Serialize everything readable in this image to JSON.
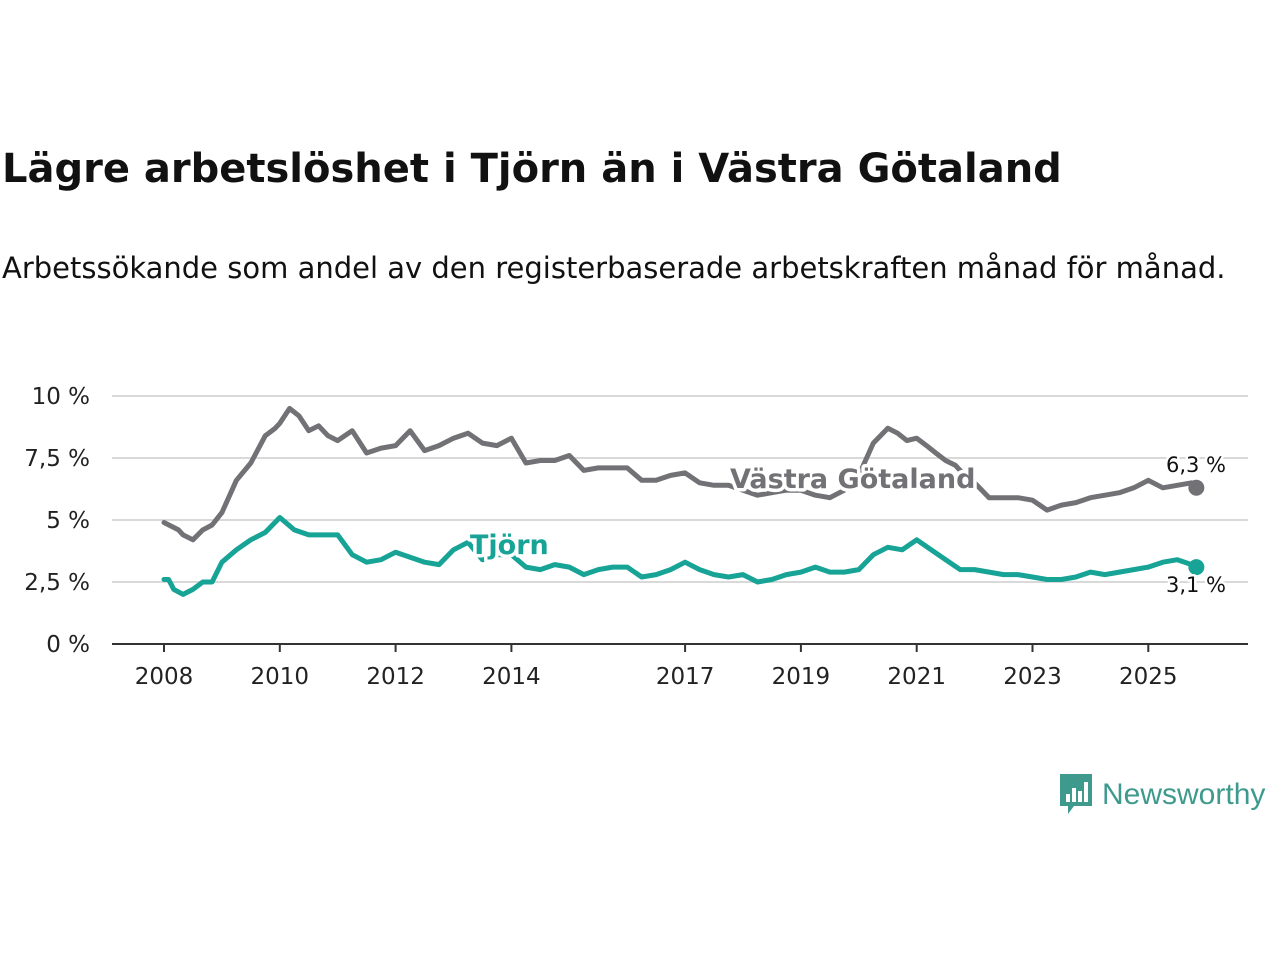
{
  "colors": {
    "vg": "#727175",
    "tjorn": "#17a395",
    "grid": "#d9d9d9",
    "axis": "#333333",
    "brand": "#3f9a8e"
  },
  "brand": {
    "name": "Newsworthy",
    "icon": "newsworthy-logo-icon"
  },
  "chart_data": {
    "type": "line",
    "title": "Lägre arbetslöshet i Tjörn än i Västra Götaland",
    "subtitle": "Arbetssökande som andel av den registerbaserade arbetskraften månad för månad.",
    "xlabel": "",
    "ylabel": "",
    "xlim": [
      2008,
      2026.2
    ],
    "ylim": [
      0,
      10
    ],
    "x_ticks": [
      2008,
      2010,
      2012,
      2014,
      2017,
      2019,
      2021,
      2023,
      2025
    ],
    "x_tick_labels": [
      "2008",
      "2010",
      "2012",
      "2014",
      "2017",
      "2019",
      "2021",
      "2023",
      "2025"
    ],
    "y_ticks": [
      0,
      2.5,
      5,
      7.5,
      10
    ],
    "y_tick_labels": [
      "0 %",
      "2,5 %",
      "5 %",
      "7,5 %",
      "10 %"
    ],
    "grid": true,
    "series": [
      {
        "name": "Västra Götaland",
        "key": "vg",
        "label": "Västra Götaland",
        "end_label": "6,3 %",
        "x": [
          2008.0,
          2008.25,
          2008.33,
          2008.5,
          2008.67,
          2008.83,
          2009.0,
          2009.25,
          2009.5,
          2009.75,
          2009.92,
          2010.0,
          2010.17,
          2010.33,
          2010.5,
          2010.67,
          2010.83,
          2011.0,
          2011.25,
          2011.5,
          2011.75,
          2012.0,
          2012.25,
          2012.5,
          2012.75,
          2013.0,
          2013.25,
          2013.5,
          2013.75,
          2014.0,
          2014.25,
          2014.5,
          2014.75,
          2015.0,
          2015.25,
          2015.5,
          2015.75,
          2016.0,
          2016.25,
          2016.5,
          2016.75,
          2017.0,
          2017.25,
          2017.5,
          2017.75,
          2018.0,
          2018.25,
          2018.5,
          2018.75,
          2019.0,
          2019.25,
          2019.5,
          2019.75,
          2020.0,
          2020.25,
          2020.5,
          2020.67,
          2020.83,
          2021.0,
          2021.17,
          2021.33,
          2021.5,
          2021.67,
          2021.83,
          2022.0,
          2022.25,
          2022.5,
          2022.75,
          2023.0,
          2023.25,
          2023.5,
          2023.75,
          2024.0,
          2024.25,
          2024.5,
          2024.75,
          2025.0,
          2025.25,
          2025.5,
          2025.75,
          2025.83
        ],
        "y": [
          4.9,
          4.6,
          4.4,
          4.2,
          4.6,
          4.8,
          5.3,
          6.6,
          7.3,
          8.4,
          8.7,
          8.9,
          9.5,
          9.2,
          8.6,
          8.8,
          8.4,
          8.2,
          8.6,
          7.7,
          7.9,
          8.0,
          8.6,
          7.8,
          8.0,
          8.3,
          8.5,
          8.1,
          8.0,
          8.3,
          7.3,
          7.4,
          7.4,
          7.6,
          7.0,
          7.1,
          7.1,
          7.1,
          6.6,
          6.6,
          6.8,
          6.9,
          6.5,
          6.4,
          6.4,
          6.2,
          6.0,
          6.1,
          6.2,
          6.2,
          6.0,
          5.9,
          6.2,
          6.8,
          8.1,
          8.7,
          8.5,
          8.2,
          8.3,
          8.0,
          7.7,
          7.4,
          7.2,
          6.8,
          6.5,
          5.9,
          5.9,
          5.9,
          5.8,
          5.4,
          5.6,
          5.7,
          5.9,
          6.0,
          6.1,
          6.3,
          6.6,
          6.3,
          6.4,
          6.5,
          6.3
        ]
      },
      {
        "name": "Tjörn",
        "key": "tjorn",
        "label": "Tjörn",
        "end_label": "3,1 %",
        "x": [
          2008.0,
          2008.08,
          2008.17,
          2008.33,
          2008.5,
          2008.67,
          2008.83,
          2009.0,
          2009.25,
          2009.5,
          2009.75,
          2010.0,
          2010.25,
          2010.5,
          2010.75,
          2011.0,
          2011.25,
          2011.5,
          2011.75,
          2012.0,
          2012.25,
          2012.5,
          2012.75,
          2013.0,
          2013.25,
          2013.5,
          2013.75,
          2014.0,
          2014.25,
          2014.5,
          2014.75,
          2015.0,
          2015.25,
          2015.5,
          2015.75,
          2016.0,
          2016.25,
          2016.5,
          2016.75,
          2017.0,
          2017.25,
          2017.5,
          2017.75,
          2018.0,
          2018.25,
          2018.5,
          2018.75,
          2019.0,
          2019.25,
          2019.5,
          2019.75,
          2020.0,
          2020.25,
          2020.5,
          2020.75,
          2021.0,
          2021.25,
          2021.5,
          2021.75,
          2022.0,
          2022.25,
          2022.5,
          2022.75,
          2023.0,
          2023.25,
          2023.5,
          2023.75,
          2024.0,
          2024.25,
          2024.5,
          2024.75,
          2025.0,
          2025.25,
          2025.5,
          2025.75,
          2025.83
        ],
        "y": [
          2.6,
          2.6,
          2.2,
          2.0,
          2.2,
          2.5,
          2.5,
          3.3,
          3.8,
          4.2,
          4.5,
          5.1,
          4.6,
          4.4,
          4.4,
          4.4,
          3.6,
          3.3,
          3.4,
          3.7,
          3.5,
          3.3,
          3.2,
          3.8,
          4.1,
          3.4,
          3.6,
          3.6,
          3.1,
          3.0,
          3.2,
          3.1,
          2.8,
          3.0,
          3.1,
          3.1,
          2.7,
          2.8,
          3.0,
          3.3,
          3.0,
          2.8,
          2.7,
          2.8,
          2.5,
          2.6,
          2.8,
          2.9,
          3.1,
          2.9,
          2.9,
          3.0,
          3.6,
          3.9,
          3.8,
          4.2,
          3.8,
          3.4,
          3.0,
          3.0,
          2.9,
          2.8,
          2.8,
          2.7,
          2.6,
          2.6,
          2.7,
          2.9,
          2.8,
          2.9,
          3.0,
          3.1,
          3.3,
          3.4,
          3.2,
          3.1
        ]
      }
    ]
  }
}
